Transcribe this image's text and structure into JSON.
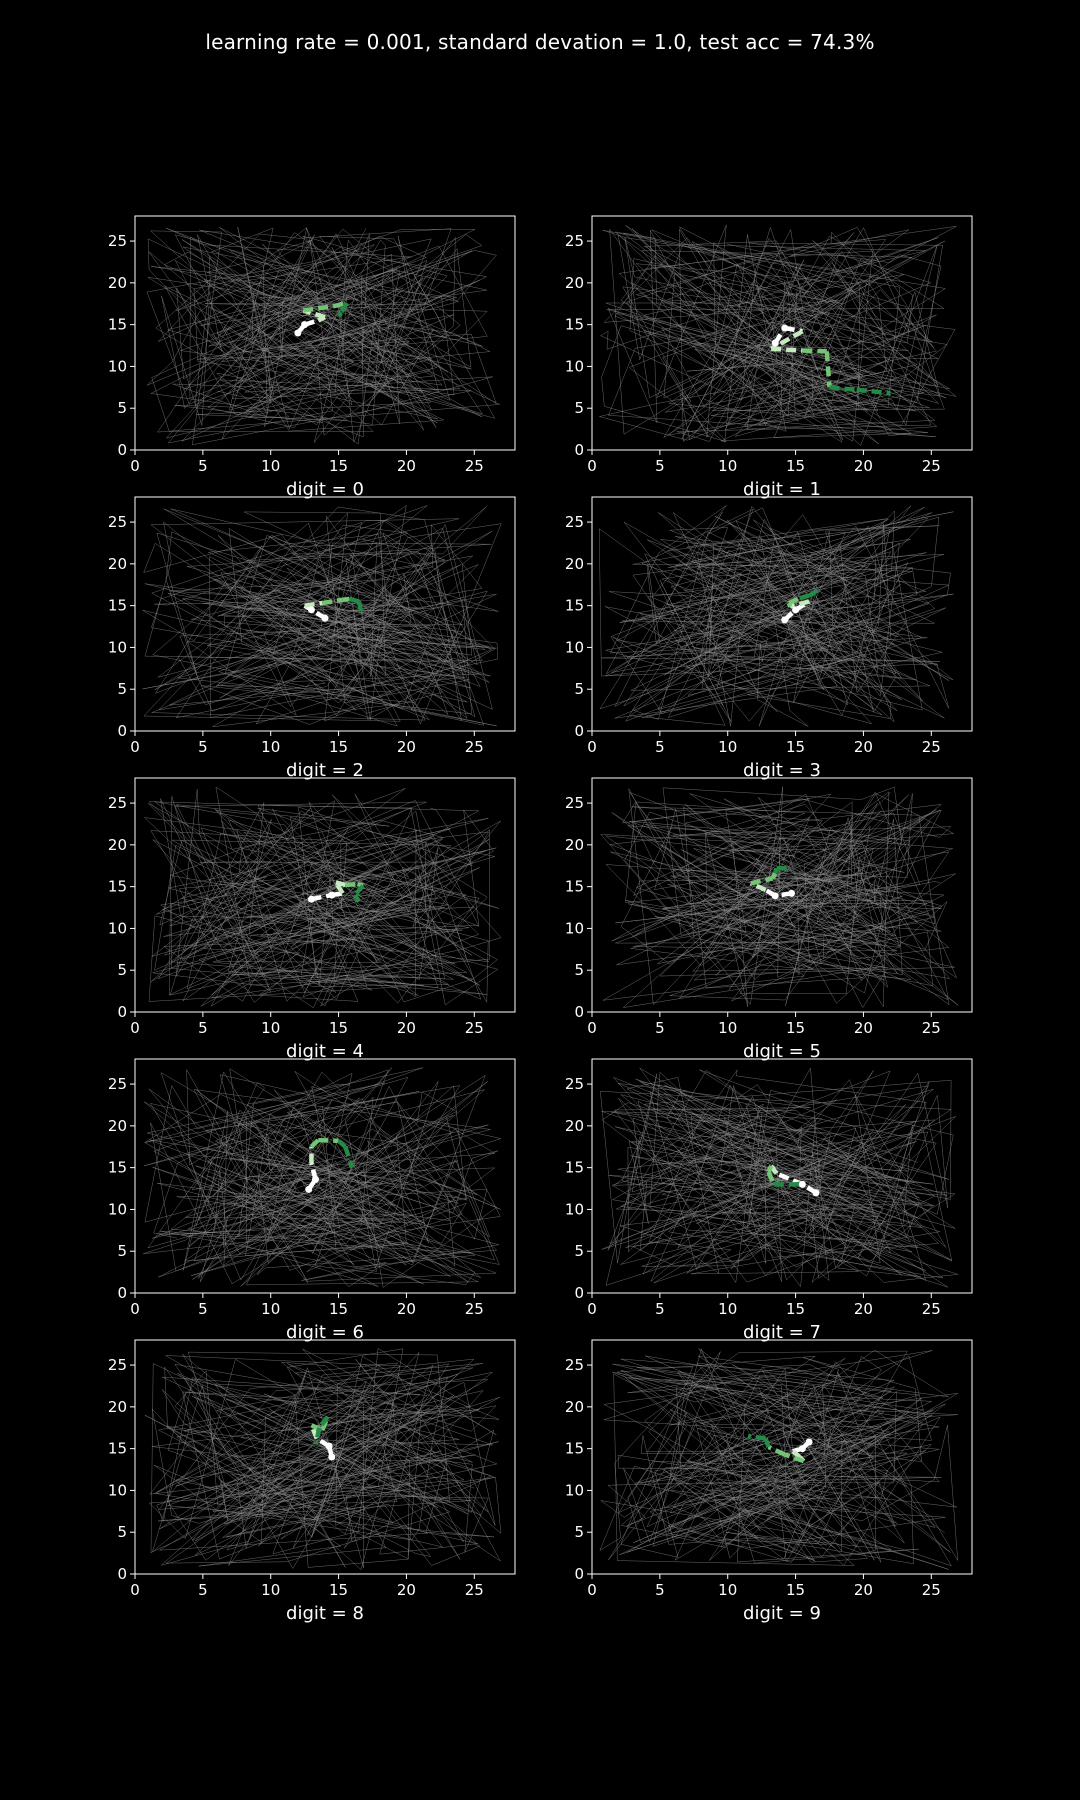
{
  "figure": {
    "title": "learning rate = 0.001, standard devation = 1.0, test acc = 74.3%",
    "background": "#000000",
    "axis_color": "#ffffff",
    "noise_color": "#8c8c8c",
    "path_palette": [
      "#ffffff",
      "#c7e9c0",
      "#74c476",
      "#238b45"
    ]
  },
  "chart_data": [
    {
      "type": "line",
      "xlabel": "digit = 0",
      "xlim": [
        0,
        28
      ],
      "ylim": [
        0,
        28
      ],
      "xticks": [
        0,
        5,
        10,
        15,
        20,
        25
      ],
      "yticks": [
        0,
        5,
        10,
        15,
        20,
        25
      ],
      "grid": false,
      "path": [
        [
          12.0,
          14.0
        ],
        [
          12.5,
          15.0
        ],
        [
          13.5,
          15.5
        ],
        [
          14.0,
          15.9
        ],
        [
          12.4,
          16.7
        ],
        [
          14.6,
          17.2
        ],
        [
          15.6,
          17.6
        ],
        [
          15.2,
          16.4
        ],
        [
          15.0,
          16.0
        ]
      ]
    },
    {
      "type": "line",
      "xlabel": "digit = 1",
      "xlim": [
        0,
        28
      ],
      "ylim": [
        0,
        28
      ],
      "xticks": [
        0,
        5,
        10,
        15,
        20,
        25
      ],
      "yticks": [
        0,
        5,
        10,
        15,
        20,
        25
      ],
      "grid": false,
      "path": [
        [
          13.5,
          12.8
        ],
        [
          14.2,
          14.6
        ],
        [
          15.5,
          14.2
        ],
        [
          13.2,
          12.1
        ],
        [
          15.5,
          11.9
        ],
        [
          17.3,
          11.8
        ],
        [
          17.5,
          7.5
        ],
        [
          19.5,
          7.2
        ],
        [
          22.0,
          6.8
        ]
      ]
    },
    {
      "type": "line",
      "xlabel": "digit = 2",
      "xlim": [
        0,
        28
      ],
      "ylim": [
        0,
        28
      ],
      "xticks": [
        0,
        5,
        10,
        15,
        20,
        25
      ],
      "yticks": [
        0,
        5,
        10,
        15,
        20,
        25
      ],
      "grid": false,
      "path": [
        [
          14.0,
          13.5
        ],
        [
          13.0,
          14.5
        ],
        [
          12.5,
          15.0
        ],
        [
          13.8,
          15.3
        ],
        [
          15.3,
          15.7
        ],
        [
          15.8,
          15.8
        ],
        [
          16.5,
          15.5
        ],
        [
          16.7,
          14.0
        ]
      ]
    },
    {
      "type": "line",
      "xlabel": "digit = 3",
      "xlim": [
        0,
        28
      ],
      "ylim": [
        0,
        28
      ],
      "xticks": [
        0,
        5,
        10,
        15,
        20,
        25
      ],
      "yticks": [
        0,
        5,
        10,
        15,
        20,
        25
      ],
      "grid": false,
      "path": [
        [
          14.2,
          13.3
        ],
        [
          15.0,
          14.5
        ],
        [
          16.0,
          15.5
        ],
        [
          14.6,
          14.9
        ],
        [
          14.5,
          15.3
        ],
        [
          15.3,
          15.9
        ],
        [
          16.0,
          16.2
        ],
        [
          16.8,
          17.0
        ]
      ]
    },
    {
      "type": "line",
      "xlabel": "digit = 4",
      "xlim": [
        0,
        28
      ],
      "ylim": [
        0,
        28
      ],
      "xticks": [
        0,
        5,
        10,
        15,
        20,
        25
      ],
      "yticks": [
        0,
        5,
        10,
        15,
        20,
        25
      ],
      "grid": false,
      "path": [
        [
          13.0,
          13.5
        ],
        [
          14.5,
          14.0
        ],
        [
          15.3,
          14.2
        ],
        [
          14.8,
          15.5
        ],
        [
          15.5,
          15.2
        ],
        [
          16.4,
          15.3
        ],
        [
          16.8,
          15.1
        ],
        [
          16.2,
          14.0
        ],
        [
          16.5,
          13.2
        ]
      ]
    },
    {
      "type": "line",
      "xlabel": "digit = 5",
      "xlim": [
        0,
        28
      ],
      "ylim": [
        0,
        28
      ],
      "xticks": [
        0,
        5,
        10,
        15,
        20,
        25
      ],
      "yticks": [
        0,
        5,
        10,
        15,
        20,
        25
      ],
      "grid": false,
      "path": [
        [
          14.7,
          14.2
        ],
        [
          13.5,
          13.9
        ],
        [
          12.8,
          14.6
        ],
        [
          11.7,
          15.4
        ],
        [
          13.3,
          16.0
        ],
        [
          13.5,
          16.6
        ],
        [
          13.6,
          17.2
        ],
        [
          14.6,
          17.2
        ]
      ]
    },
    {
      "type": "line",
      "xlabel": "digit = 6",
      "xlim": [
        0,
        28
      ],
      "ylim": [
        0,
        28
      ],
      "xticks": [
        0,
        5,
        10,
        15,
        20,
        25
      ],
      "yticks": [
        0,
        5,
        10,
        15,
        20,
        25
      ],
      "grid": false,
      "path": [
        [
          12.8,
          12.4
        ],
        [
          13.3,
          13.6
        ],
        [
          13.0,
          15.5
        ],
        [
          13.0,
          17.5
        ],
        [
          13.5,
          18.3
        ],
        [
          15.0,
          18.2
        ],
        [
          15.5,
          17.5
        ],
        [
          16.0,
          15.0
        ]
      ]
    },
    {
      "type": "line",
      "xlabel": "digit = 7",
      "xlim": [
        0,
        28
      ],
      "ylim": [
        0,
        28
      ],
      "xticks": [
        0,
        5,
        10,
        15,
        20,
        25
      ],
      "yticks": [
        0,
        5,
        10,
        15,
        20,
        25
      ],
      "grid": false,
      "path": [
        [
          16.5,
          12.0
        ],
        [
          15.5,
          13.0
        ],
        [
          13.6,
          14.3
        ],
        [
          13.2,
          15.2
        ],
        [
          13.0,
          14.5
        ],
        [
          13.4,
          13.0
        ],
        [
          15.0,
          13.0
        ],
        [
          16.0,
          13.2
        ]
      ]
    },
    {
      "type": "line",
      "xlabel": "digit = 8",
      "xlim": [
        0,
        28
      ],
      "ylim": [
        0,
        28
      ],
      "xticks": [
        0,
        5,
        10,
        15,
        20,
        25
      ],
      "yticks": [
        0,
        5,
        10,
        15,
        20,
        25
      ],
      "grid": false,
      "path": [
        [
          14.5,
          14.0
        ],
        [
          14.3,
          15.3
        ],
        [
          13.4,
          16.2
        ],
        [
          13.0,
          17.8
        ],
        [
          13.8,
          17.2
        ],
        [
          14.2,
          18.8
        ],
        [
          13.6,
          17.5
        ],
        [
          13.3,
          15.5
        ]
      ]
    },
    {
      "type": "line",
      "xlabel": "digit = 9",
      "xlim": [
        0,
        28
      ],
      "ylim": [
        0,
        28
      ],
      "xticks": [
        0,
        5,
        10,
        15,
        20,
        25
      ],
      "yticks": [
        0,
        5,
        10,
        15,
        20,
        25
      ],
      "grid": false,
      "path": [
        [
          16.0,
          15.8
        ],
        [
          15.5,
          15.0
        ],
        [
          14.8,
          14.7
        ],
        [
          15.3,
          14.0
        ],
        [
          15.6,
          13.5
        ],
        [
          14.2,
          14.3
        ],
        [
          13.0,
          15.2
        ],
        [
          12.8,
          16.2
        ],
        [
          11.5,
          16.5
        ]
      ]
    }
  ]
}
